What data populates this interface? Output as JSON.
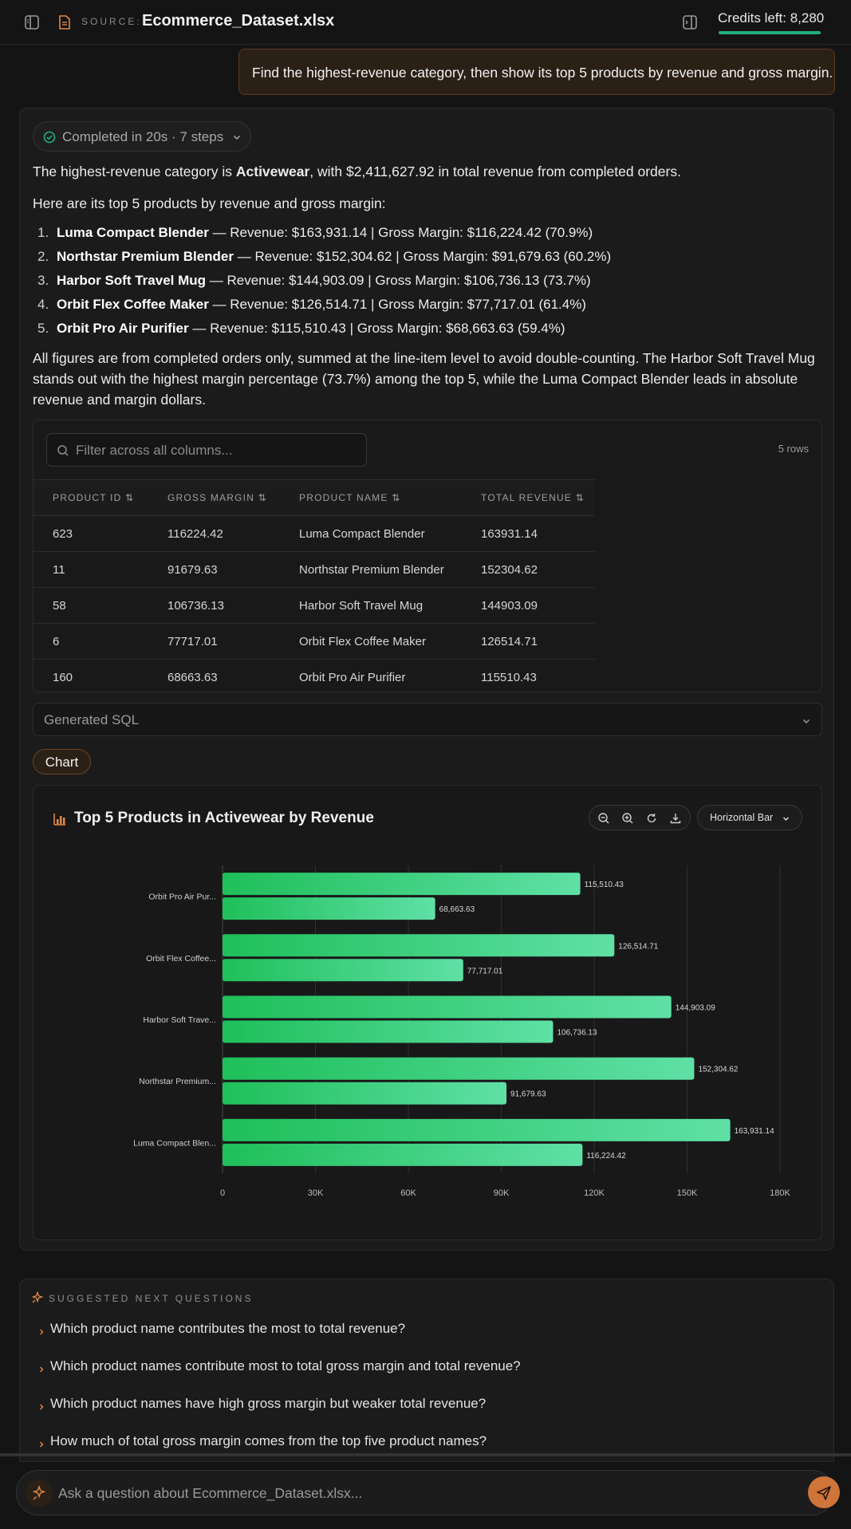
{
  "header": {
    "source_label": "SOURCE:",
    "file_name": "Ecommerce_Dataset.xlsx",
    "credits": "Credits left: 8,280",
    "credits_fraction": 1.0
  },
  "user_message": "Find the highest-revenue category, then show its top 5 products by revenue and gross margin.",
  "answer": {
    "status": "Completed in 20s · 7 steps",
    "intro_pre": "The highest-revenue category is ",
    "intro_bold": "Activewear",
    "intro_post": ", with $2,411,627.92 in total revenue from completed orders.",
    "list_intro": "Here are its top 5 products by revenue and gross margin:",
    "items": [
      {
        "num": "1.",
        "name": "Luma Compact Blender",
        "detail": " — Revenue: $163,931.14 | Gross Margin: $116,224.42 (70.9%)"
      },
      {
        "num": "2.",
        "name": "Northstar Premium Blender",
        "detail": " — Revenue: $152,304.62 | Gross Margin: $91,679.63 (60.2%)"
      },
      {
        "num": "3.",
        "name": "Harbor Soft Travel Mug",
        "detail": " — Revenue: $144,903.09 | Gross Margin: $106,736.13 (73.7%)"
      },
      {
        "num": "4.",
        "name": "Orbit Flex Coffee Maker",
        "detail": " — Revenue: $126,514.71 | Gross Margin: $77,717.01 (61.4%)"
      },
      {
        "num": "5.",
        "name": "Orbit Pro Air Purifier",
        "detail": " — Revenue: $115,510.43 | Gross Margin: $68,663.63 (59.4%)"
      }
    ],
    "summary_1": "All figures are from completed orders only, summed at the line-item level to avoid double-counting. The Harbor Soft Travel Mug",
    "summary_2": "stands out with the highest margin percentage (73.7%) among the top 5, while the Luma Compact Blender leads in absolute",
    "summary_3": "revenue and margin dollars."
  },
  "table": {
    "filter_placeholder": "Filter across all columns...",
    "row_count": "5 rows",
    "columns": [
      "PRODUCT ID",
      "GROSS MARGIN",
      "PRODUCT NAME",
      "TOTAL REVENUE"
    ],
    "rows": [
      [
        "623",
        "116224.42",
        "Luma Compact Blender",
        "163931.14"
      ],
      [
        "11",
        "91679.63",
        "Northstar Premium Blender",
        "152304.62"
      ],
      [
        "58",
        "106736.13",
        "Harbor Soft Travel Mug",
        "144903.09"
      ],
      [
        "6",
        "77717.01",
        "Orbit Flex Coffee Maker",
        "126514.71"
      ],
      [
        "160",
        "68663.63",
        "Orbit Pro Air Purifier",
        "115510.43"
      ]
    ]
  },
  "sql_label": "Generated SQL",
  "chart_tab": "Chart",
  "chart_type_label": "Horizontal Bar",
  "chart_data": {
    "type": "bar",
    "orientation": "horizontal",
    "title": "Top 5 Products in Activewear by Revenue",
    "categories": [
      "Orbit Pro Air Pur...",
      "Orbit Flex Coffee...",
      "Harbor Soft Trave...",
      "Northstar Premium...",
      "Luma Compact Blen..."
    ],
    "series": [
      {
        "values": [
          115510.43,
          126514.71,
          144903.09,
          152304.62,
          163931.14
        ],
        "labels": [
          "115,510.43",
          "126,514.71",
          "144,903.09",
          "152,304.62",
          "163,931.14"
        ]
      },
      {
        "values": [
          68663.63,
          77717.01,
          106736.13,
          91679.63,
          116224.42
        ],
        "labels": [
          "68,663.63",
          "77,717.01",
          "106,736.13",
          "91,679.63",
          "116,224.42"
        ]
      }
    ],
    "xlim": [
      0,
      180000
    ],
    "xticks": [
      0,
      30000,
      60000,
      90000,
      120000,
      150000,
      180000
    ],
    "xtick_labels": [
      "0",
      "30K",
      "60K",
      "90K",
      "120K",
      "150K",
      "180K"
    ],
    "grid": true,
    "bar_color_start": "#1fbf5a",
    "bar_color_end": "#5fe0a6"
  },
  "suggestions": {
    "heading": "SUGGESTED NEXT QUESTIONS",
    "items": [
      "Which product name contributes the most to total revenue?",
      "Which product names contribute most to total gross margin and total revenue?",
      "Which product names have high gross margin but weaker total revenue?",
      "How much of total gross margin comes from the top five product names?"
    ]
  },
  "composer": {
    "placeholder": "Ask a question about Ecommerce_Dataset.xlsx..."
  },
  "colors": {
    "accent": "#e0874a",
    "success": "#22b07d"
  }
}
